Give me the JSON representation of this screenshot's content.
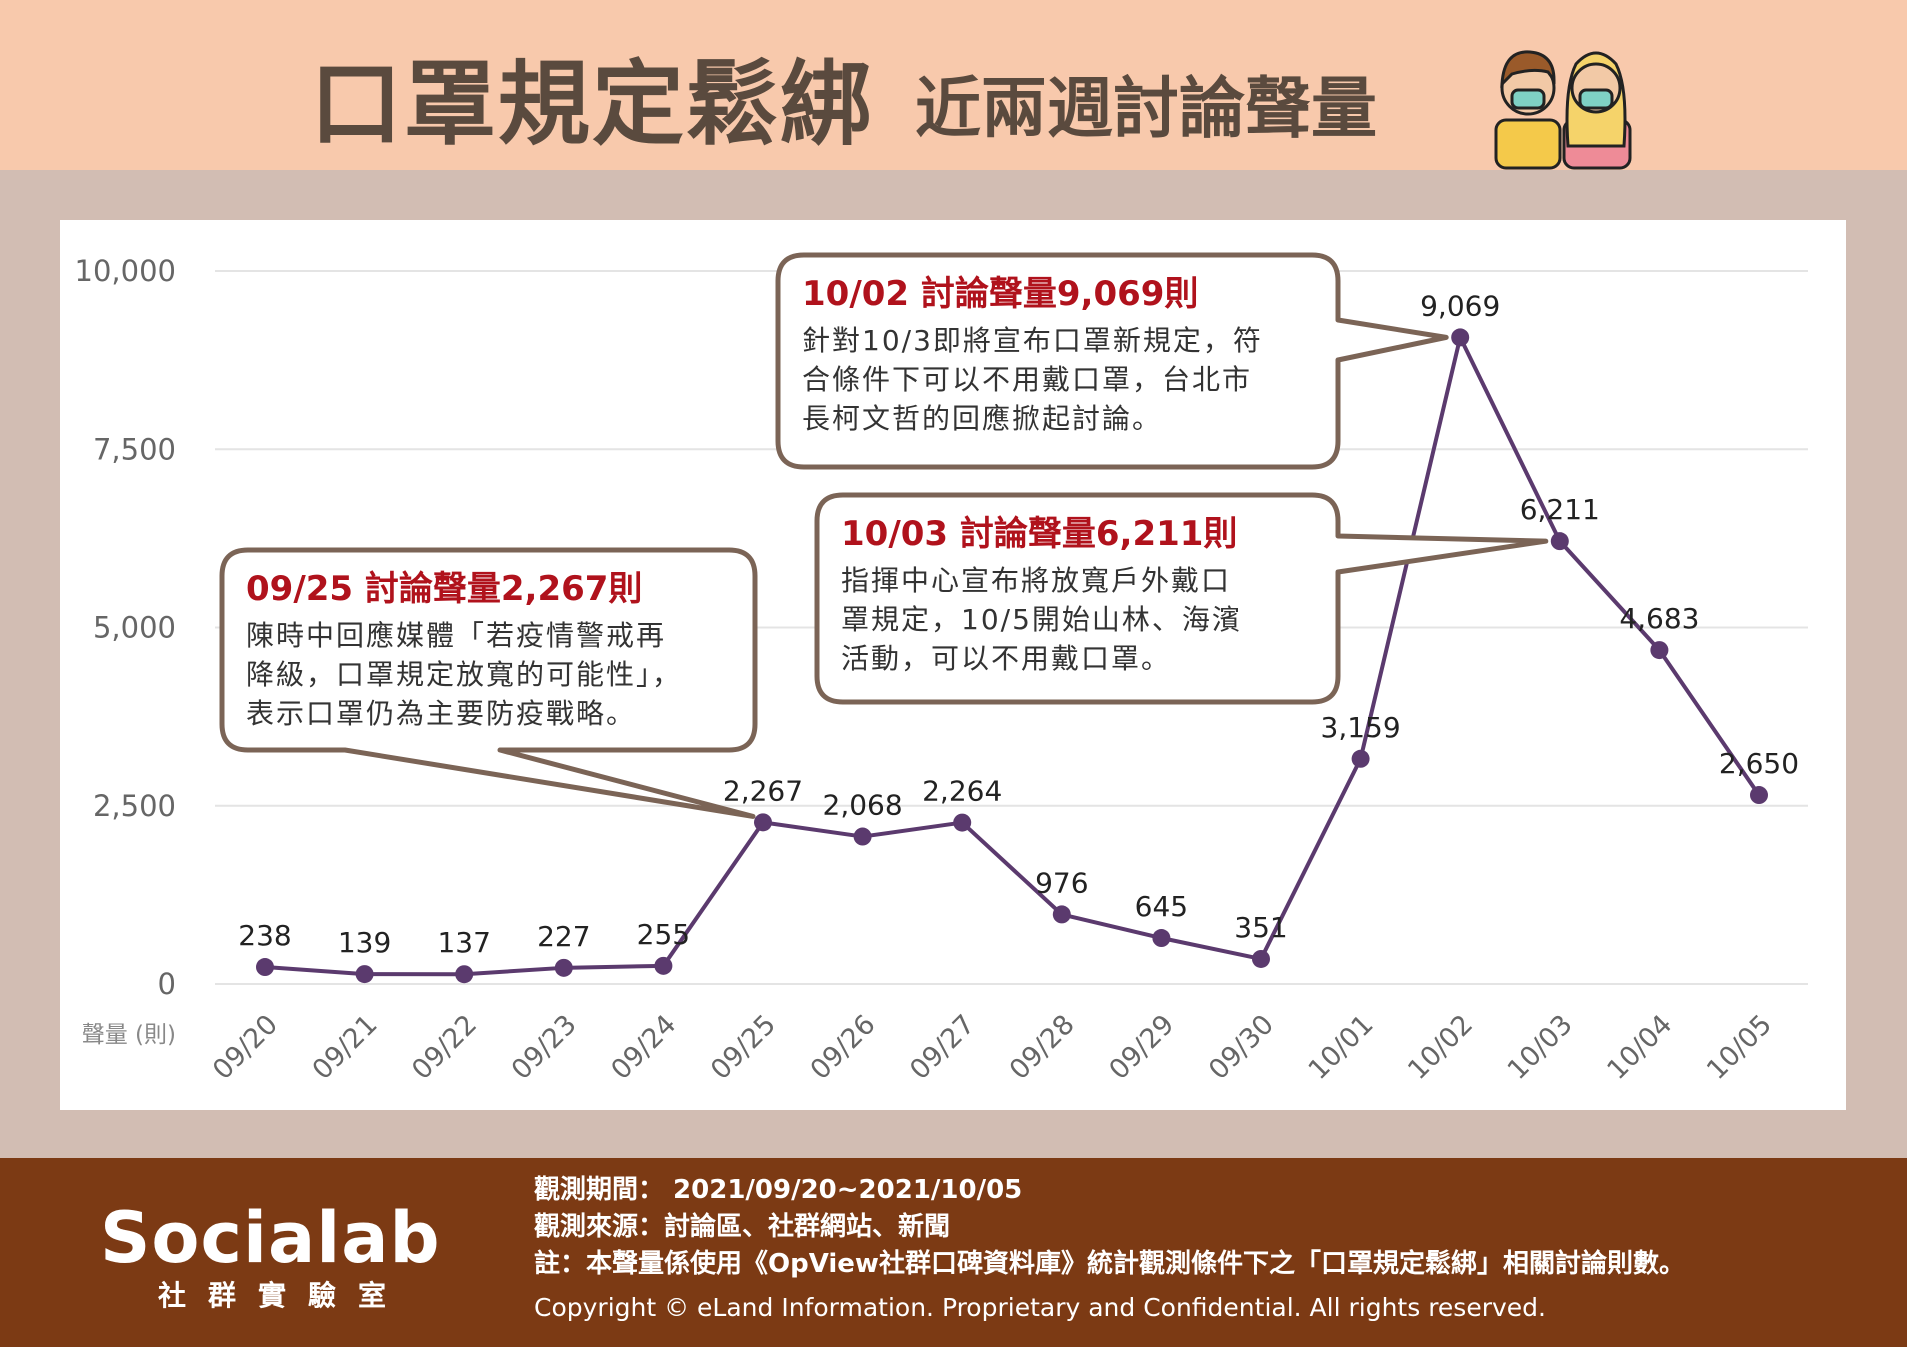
{
  "header": {
    "title_main": "口罩規定鬆綁",
    "title_sub": "近兩週討論聲量",
    "mascot_icon": "masked-people-icon"
  },
  "chart_data": {
    "type": "line",
    "title": "口罩規定鬆綁 近兩週討論聲量",
    "categories": [
      "09/20",
      "09/21",
      "09/22",
      "09/23",
      "09/24",
      "09/25",
      "09/26",
      "09/27",
      "09/28",
      "09/29",
      "09/30",
      "10/01",
      "10/02",
      "10/03",
      "10/04",
      "10/05"
    ],
    "values": [
      238,
      139,
      137,
      227,
      255,
      2267,
      2068,
      2264,
      976,
      645,
      351,
      3159,
      9069,
      6211,
      4683,
      2650
    ],
    "value_labels": [
      "238",
      "139",
      "137",
      "227",
      "255",
      "2,267",
      "2,068",
      "2,264",
      "976",
      "645",
      "351",
      "3,159",
      "9,069",
      "6,211",
      "4,683",
      "2,650"
    ],
    "ylim": [
      0,
      10000
    ],
    "yticks": [
      0,
      2500,
      5000,
      7500,
      10000
    ],
    "ytick_labels": [
      "0",
      "2,500",
      "5,000",
      "7,500",
      "10,000"
    ],
    "ylabel": "聲量 (則)",
    "grid": true,
    "line_color": "#5b3a6e",
    "annotations": [
      {
        "target": "09/25",
        "title": "09/25 討論聲量2,267則",
        "lines": [
          "陳時中回應媒體「若疫情警戒再",
          "降級，口罩規定放寬的可能性」，",
          "表示口罩仍為主要防疫戰略。"
        ]
      },
      {
        "target": "10/02",
        "title": "10/02 討論聲量9,069則",
        "lines": [
          "針對10/3即將宣布口罩新規定，符",
          "合條件下可以不用戴口罩，台北市",
          "長柯文哲的回應掀起討論。"
        ]
      },
      {
        "target": "10/03",
        "title": "10/03 討論聲量6,211則",
        "lines": [
          "指揮中心宣布將放寬戶外戴口",
          "罩規定，10/5開始山林、海濱",
          "活動，可以不用戴口罩。"
        ]
      }
    ]
  },
  "footer": {
    "logo_text": "Socialab",
    "logo_sub": "社群實驗室",
    "period": "觀測期間： 2021/09/20~2021/10/05",
    "source": "觀測來源：討論區、社群網站、新聞",
    "note": "註：本聲量係使用《OpView社群口碑資料庫》統計觀測條件下之「口罩規定鬆綁」相關討論則數。",
    "copyright": "Copyright © eLand Information. Proprietary and Confidential. All rights reserved."
  },
  "colors": {
    "header_bg": "#f8c9ac",
    "page_bg": "#d2bdb3",
    "footer_bg": "#7c3a14",
    "title_text": "#5a4a3e",
    "callout_title": "#b0121c",
    "callout_border": "#7b6456"
  }
}
